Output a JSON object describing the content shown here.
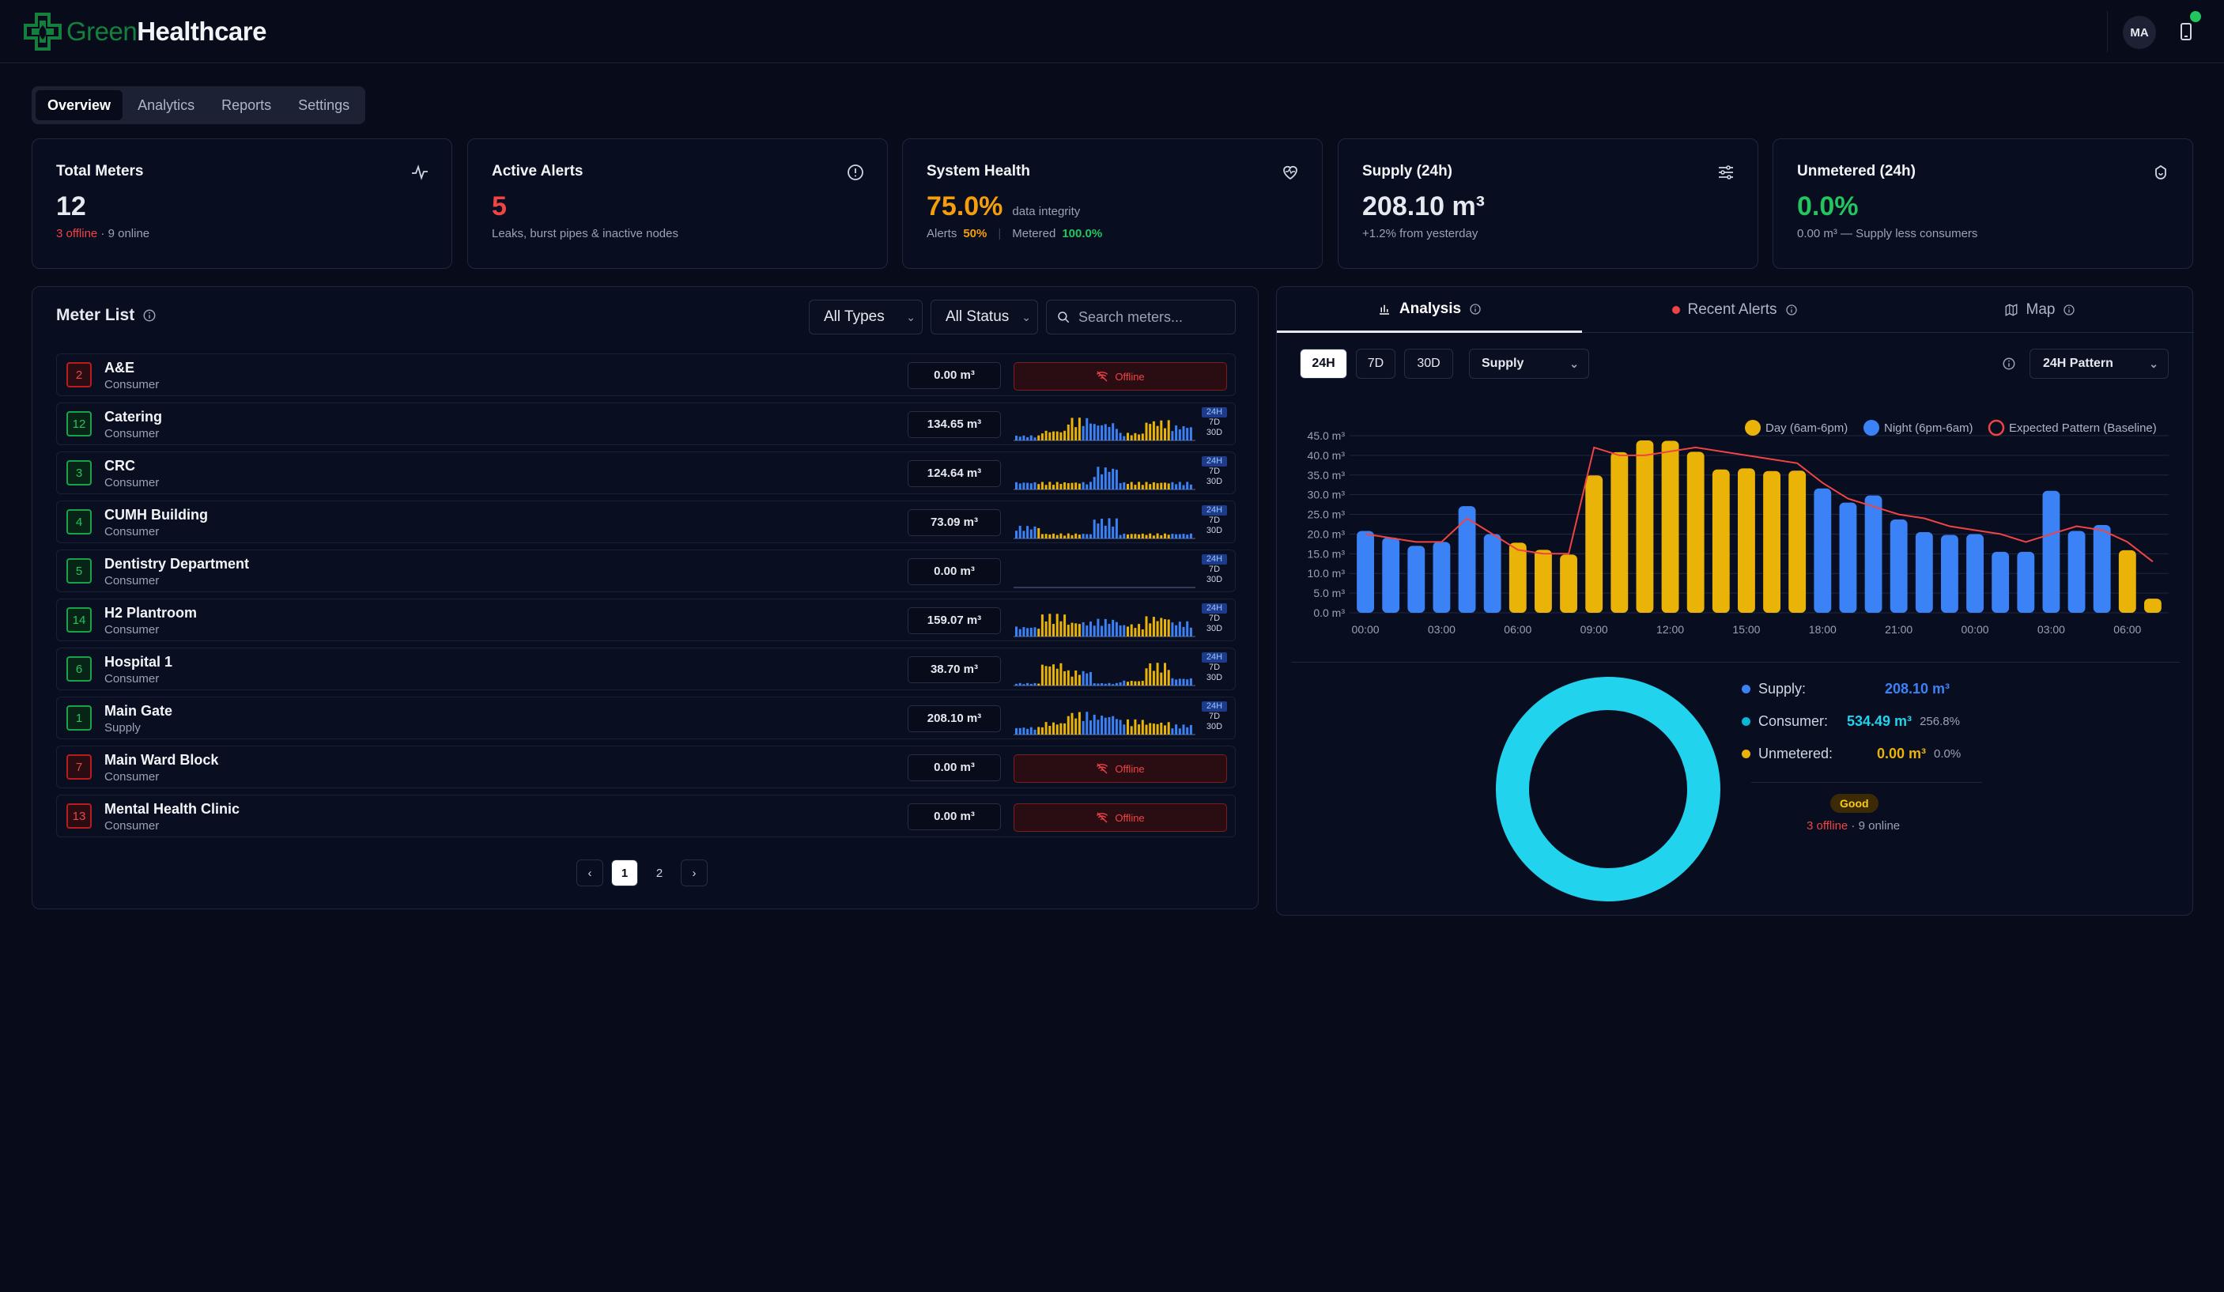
{
  "app": {
    "brand_part1": "Green",
    "brand_part2": "Healthcare",
    "user_initials": "MA"
  },
  "tabs": [
    "Overview",
    "Analytics",
    "Reports",
    "Settings"
  ],
  "cards": {
    "total_meters": {
      "title": "Total Meters",
      "value": "12",
      "offline": "3 offline",
      "online": " · 9 online"
    },
    "active_alerts": {
      "title": "Active Alerts",
      "value": "5",
      "sub": "Leaks, burst pipes & inactive nodes"
    },
    "system_health": {
      "title": "System Health",
      "value": "75.0%",
      "value_suffix": "data integrity",
      "alerts_label": "Alerts",
      "alerts_value": "50%",
      "metered_label": "Metered",
      "metered_value": "100.0%"
    },
    "supply": {
      "title": "Supply (24h)",
      "value": "208.10 m³",
      "sub": "+1.2% from yesterday"
    },
    "unmetered": {
      "title": "Unmetered (24h)",
      "value": "0.0%",
      "sub": "0.00 m³ — Supply less consumers"
    }
  },
  "meter_list": {
    "title": "Meter List",
    "type_filter": "All Types",
    "status_filter": "All Status",
    "search_placeholder": "Search meters...",
    "offline_label": "Offline",
    "period_labels": [
      "24H",
      "7D",
      "30D"
    ],
    "rows": [
      {
        "id": "2",
        "name": "A&E",
        "type": "Consumer",
        "value": "0.00 m³",
        "status": "offline"
      },
      {
        "id": "12",
        "name": "Catering",
        "type": "Consumer",
        "value": "134.65 m³",
        "status": "online"
      },
      {
        "id": "3",
        "name": "CRC",
        "type": "Consumer",
        "value": "124.64 m³",
        "status": "online"
      },
      {
        "id": "4",
        "name": "CUMH Building",
        "type": "Consumer",
        "value": "73.09 m³",
        "status": "online"
      },
      {
        "id": "5",
        "name": "Dentistry Department",
        "type": "Consumer",
        "value": "0.00 m³",
        "status": "online"
      },
      {
        "id": "14",
        "name": "H2 Plantroom",
        "type": "Consumer",
        "value": "159.07 m³",
        "status": "online"
      },
      {
        "id": "6",
        "name": "Hospital 1",
        "type": "Consumer",
        "value": "38.70 m³",
        "status": "online"
      },
      {
        "id": "1",
        "name": "Main Gate",
        "type": "Supply",
        "value": "208.10 m³",
        "status": "online"
      },
      {
        "id": "7",
        "name": "Main Ward Block",
        "type": "Consumer",
        "value": "0.00 m³",
        "status": "offline"
      },
      {
        "id": "13",
        "name": "Mental Health Clinic",
        "type": "Consumer",
        "value": "0.00 m³",
        "status": "offline"
      }
    ],
    "pager": {
      "prev": "‹",
      "pages": [
        "1",
        "2"
      ],
      "current": "1",
      "next": "›"
    }
  },
  "analysis": {
    "tabs": [
      "Analysis",
      "Recent Alerts",
      "Map"
    ],
    "periods": [
      "24H",
      "7D",
      "30D"
    ],
    "active_period": "24H",
    "metric_select": "Supply",
    "pattern_select": "24H Pattern",
    "legend": {
      "day": "Day (6am-6pm)",
      "night": "Night (6pm-6am)",
      "expected": "Expected Pattern (Baseline)"
    },
    "summary": {
      "supply_label": "Supply:",
      "supply_value": "208.10 m³",
      "consumer_label": "Consumer:",
      "consumer_value": "534.49 m³",
      "consumer_pct": "256.8%",
      "unmetered_label": "Unmetered:",
      "unmetered_value": "0.00 m³",
      "unmetered_pct": "0.0%",
      "health": "Good",
      "offline": "3 offline",
      "online": " · 9 online"
    }
  },
  "colors": {
    "day": "#eab308",
    "night": "#3b82f6",
    "expected": "#ef4444",
    "donut": "#22d3ee",
    "accent_green": "#22c55e",
    "alert_red": "#ef4444"
  },
  "chart_data": {
    "type": "bar",
    "ylim": [
      0,
      45
    ],
    "yticks": [
      "0.0 m³",
      "5.0 m³",
      "10.0 m³",
      "15.0 m³",
      "20.0 m³",
      "25.0 m³",
      "30.0 m³",
      "35.0 m³",
      "40.0 m³",
      "45.0 m³"
    ],
    "xticks": [
      "00:00",
      "03:00",
      "06:00",
      "09:00",
      "12:00",
      "15:00",
      "18:00",
      "21:00",
      "00:00",
      "03:00",
      "06:00"
    ],
    "values": [
      20.8,
      19.1,
      17.0,
      18.0,
      27.1,
      20.0,
      17.8,
      16.0,
      14.8,
      34.9,
      40.8,
      43.8,
      43.7,
      40.9,
      36.4,
      36.7,
      36.0,
      36.1,
      31.6,
      28.0,
      29.8,
      23.7,
      20.5,
      19.8,
      20.0,
      15.5,
      15.5,
      31.0,
      20.8,
      22.3,
      15.9,
      3.6
    ],
    "period": [
      "night",
      "night",
      "night",
      "night",
      "night",
      "night",
      "day",
      "day",
      "day",
      "day",
      "day",
      "day",
      "day",
      "day",
      "day",
      "day",
      "day",
      "day",
      "night",
      "night",
      "night",
      "night",
      "night",
      "night",
      "night",
      "night",
      "night",
      "night",
      "night",
      "night",
      "day",
      "day"
    ],
    "expected": [
      20.0,
      19.0,
      18.0,
      18.0,
      24.0,
      20.0,
      16.0,
      15.0,
      15.0,
      42.0,
      40.0,
      40.0,
      41.0,
      42.0,
      41.0,
      40.0,
      39.0,
      38.0,
      33.0,
      29.0,
      27.0,
      25.0,
      24.0,
      22.0,
      21.0,
      20.0,
      18.0,
      20.0,
      22.0,
      21.0,
      18.0,
      13.0
    ]
  }
}
